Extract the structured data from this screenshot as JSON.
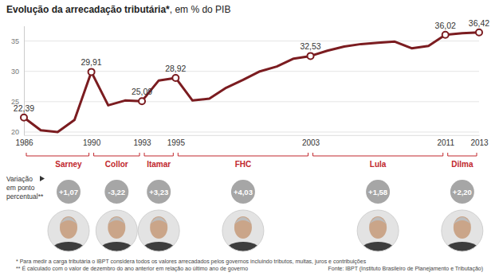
{
  "chart_data": {
    "type": "line",
    "title": "Evolução da arrecadação tributária*",
    "subtitle": ", em % do PIB",
    "x": [
      1986,
      1987,
      1988,
      1989,
      1990,
      1991,
      1992,
      1993,
      1994,
      1995,
      1996,
      1997,
      1998,
      1999,
      2000,
      2001,
      2002,
      2003,
      2004,
      2005,
      2006,
      2007,
      2008,
      2009,
      2010,
      2011,
      2012,
      2013
    ],
    "values": [
      22.39,
      20.3,
      20.0,
      22.0,
      29.91,
      24.4,
      25.2,
      25.09,
      28.5,
      28.92,
      25.2,
      25.5,
      27.3,
      28.6,
      30.0,
      30.8,
      32.1,
      32.53,
      33.4,
      34.1,
      34.5,
      34.7,
      34.9,
      33.8,
      34.2,
      36.02,
      36.3,
      36.42
    ],
    "value_labels": [
      "22,39",
      null,
      null,
      null,
      "29,91",
      null,
      null,
      "25,09",
      null,
      "28,92",
      null,
      null,
      null,
      null,
      null,
      null,
      null,
      "32,53",
      null,
      null,
      null,
      null,
      null,
      null,
      null,
      "36,02",
      null,
      "36,42"
    ],
    "data_labels": true,
    "color": "#7b1c20",
    "xlim": [
      1986,
      2013
    ],
    "xticks": [
      1986,
      1990,
      1993,
      1995,
      2003,
      2011,
      2013
    ],
    "ylim": [
      19.5,
      37.5
    ],
    "yticks": [
      20,
      25,
      30,
      35
    ],
    "grid": true,
    "change_title": [
      "Variação",
      "em ponto",
      "percentual**"
    ],
    "governments": [
      {
        "name": "Sarney",
        "start": 1986,
        "end": 1990,
        "change": "+1,07"
      },
      {
        "name": "Collor",
        "start": 1990,
        "end": 1993,
        "change": "-3,22"
      },
      {
        "name": "Itamar",
        "start": 1993,
        "end": 1995,
        "change": "+3,23"
      },
      {
        "name": "FHC",
        "start": 1995,
        "end": 2003,
        "change": "+4,03"
      },
      {
        "name": "Lula",
        "start": 2003,
        "end": 2011,
        "change": "+1,58"
      },
      {
        "name": "Dilma",
        "start": 2011,
        "end": 2013,
        "change": "+2,20"
      }
    ],
    "footnotes": [
      "* Para medir a carga tributária o IBPT considera todos os valores arrecadados pelos governos incluindo tributos, multas, juros e contribuições",
      "** É calculado com o valor de dezembro do ano anterior em relação ao último ano de governo"
    ],
    "source": "Fonte: IBPT (Instituto Brasileiro de Planejamento e Tributação)"
  }
}
